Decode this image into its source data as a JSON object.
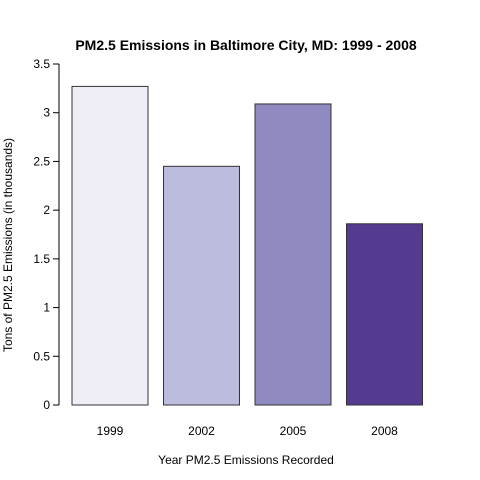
{
  "chart_data": {
    "type": "bar",
    "title": "PM2.5 Emissions in Baltimore City, MD: 1999 - 2008",
    "xlabel": "Year PM2.5 Emissions Recorded",
    "ylabel": "Tons of PM2.5 Emissions (in thousands)",
    "categories": [
      "1999",
      "2002",
      "2005",
      "2008"
    ],
    "values": [
      3.27,
      2.45,
      3.09,
      1.86
    ],
    "ylim": [
      0,
      3.5
    ],
    "yticks": [
      "0",
      "0.5",
      "1",
      "1.5",
      "2",
      "2.5",
      "3",
      "3.5"
    ],
    "ytick_values": [
      0,
      0.5,
      1,
      1.5,
      2,
      2.5,
      3,
      3.5
    ],
    "bar_colors": [
      "#efedf5",
      "#bcbddc",
      "#8f8abf",
      "#553b8f"
    ],
    "grid": false,
    "legend": "none"
  }
}
